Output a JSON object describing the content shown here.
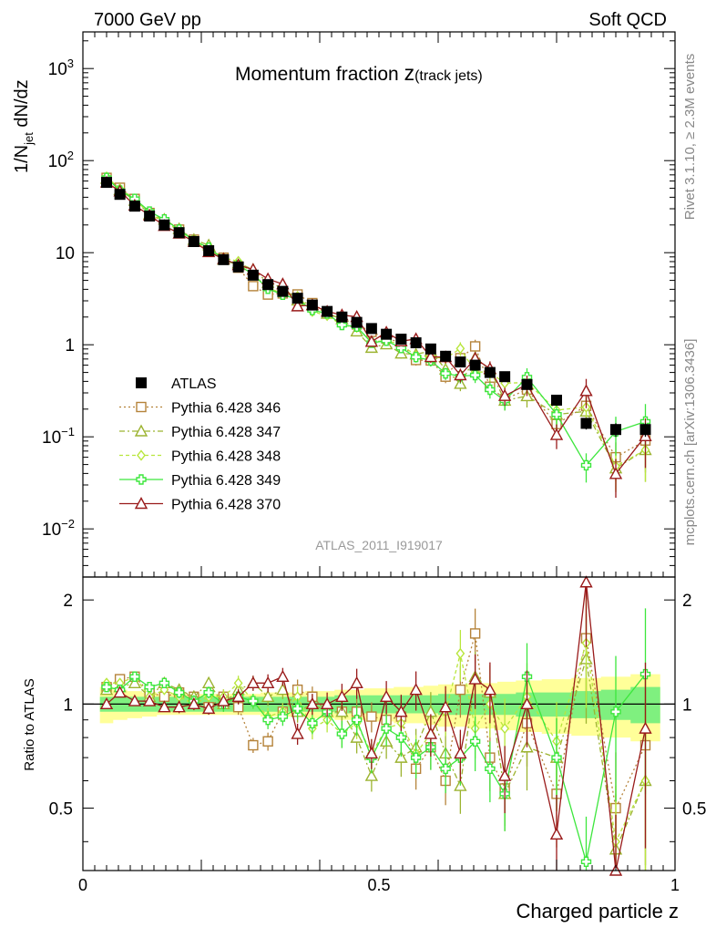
{
  "header": {
    "left": "7000 GeV pp",
    "right": "Soft QCD"
  },
  "side_text": {
    "rivet": "Rivet 3.1.10, ≥ 2.3M events",
    "mcplots": "mcplots.cern.ch [arXiv:1306.3436]"
  },
  "plot": {
    "title_main": "Momentum fraction ",
    "title_var": "z",
    "title_sub": "(track jets)",
    "analysis_id": "ATLAS_2011_I919017",
    "ylabel_main": "1/N",
    "ylabel_sub": "jet",
    "ylabel_rest": " dN/dz",
    "ratio_ylabel": "Ratio to ATLAS",
    "xlabel": "Charged particle z"
  },
  "colors": {
    "atlas": "#000000",
    "p346": "#b5833a",
    "p347": "#9cb330",
    "p348": "#b8e63c",
    "p349": "#3ce63c",
    "p370": "#991a1a",
    "band_yellow": "#ffff99",
    "band_green": "#7ff07f"
  },
  "chart_data": {
    "type": "scatter",
    "x_scale": "linear",
    "y_scale": "log",
    "xlim": [
      0,
      1
    ],
    "ylim": [
      0.003,
      2500
    ],
    "ratio_ylim": [
      0.33,
      2.33
    ],
    "x_ticks": [
      "0",
      "0.5",
      "1"
    ],
    "x_tick_values": [
      0,
      0.5,
      1
    ],
    "y_ticks": [
      {
        "value": 1000,
        "base": "10",
        "exp": "3"
      },
      {
        "value": 100,
        "base": "10",
        "exp": "2"
      },
      {
        "value": 10,
        "base": "10",
        "exp": ""
      },
      {
        "value": 1,
        "base": "1",
        "exp": ""
      },
      {
        "value": 0.1,
        "base": "10",
        "exp": "−1"
      },
      {
        "value": 0.01,
        "base": "10",
        "exp": "−2"
      }
    ],
    "ratio_ticks": [
      {
        "value": 0.5,
        "label": "0.5"
      },
      {
        "value": 1,
        "label": "1"
      },
      {
        "value": 2,
        "label": "2"
      }
    ],
    "x": [
      0.04,
      0.0625,
      0.0875,
      0.1125,
      0.1375,
      0.1625,
      0.1875,
      0.2125,
      0.2375,
      0.2625,
      0.2875,
      0.3125,
      0.3375,
      0.3625,
      0.3875,
      0.4125,
      0.4375,
      0.4625,
      0.4875,
      0.5125,
      0.5375,
      0.5625,
      0.5875,
      0.6125,
      0.6375,
      0.6625,
      0.6875,
      0.7125,
      0.75,
      0.8,
      0.85,
      0.9,
      0.95
    ],
    "atlas": {
      "name": "ATLAS",
      "values": [
        58,
        43,
        32,
        25,
        20,
        16.5,
        13.2,
        10.5,
        8.4,
        7,
        5.7,
        4.5,
        3.8,
        3.2,
        2.7,
        2.3,
        2,
        1.75,
        1.5,
        1.3,
        1.15,
        1.05,
        0.9,
        0.75,
        0.65,
        0.6,
        0.5,
        0.45,
        0.37,
        0.25,
        0.14,
        0.12,
        0.12
      ],
      "errors": [
        1.5,
        1,
        0.8,
        0.6,
        0.5,
        0.4,
        0.3,
        0.25,
        0.2,
        0.18,
        0.15,
        0.12,
        0.1,
        0.1,
        0.08,
        0.07,
        0.07,
        0.06,
        0.06,
        0.05,
        0.05,
        0.05,
        0.05,
        0.04,
        0.04,
        0.04,
        0.04,
        0.04,
        0.03,
        0.03,
        0.02,
        0.02,
        0.02
      ]
    },
    "band": {
      "yellow_lo": [
        0.88,
        0.9,
        0.91,
        0.92,
        0.93,
        0.93,
        0.93,
        0.93,
        0.93,
        0.93,
        0.93,
        0.92,
        0.92,
        0.92,
        0.91,
        0.91,
        0.9,
        0.9,
        0.89,
        0.89,
        0.88,
        0.88,
        0.87,
        0.86,
        0.86,
        0.85,
        0.85,
        0.84,
        0.83,
        0.82,
        0.81,
        0.8,
        0.78
      ],
      "yellow_hi": [
        1.12,
        1.1,
        1.09,
        1.08,
        1.07,
        1.07,
        1.07,
        1.07,
        1.07,
        1.07,
        1.07,
        1.08,
        1.08,
        1.08,
        1.09,
        1.09,
        1.1,
        1.1,
        1.11,
        1.11,
        1.12,
        1.12,
        1.13,
        1.14,
        1.14,
        1.15,
        1.15,
        1.16,
        1.17,
        1.18,
        1.19,
        1.2,
        1.22
      ],
      "green_lo": [
        0.95,
        0.95,
        0.95,
        0.95,
        0.95,
        0.95,
        0.95,
        0.95,
        0.95,
        0.95,
        0.95,
        0.95,
        0.95,
        0.95,
        0.95,
        0.95,
        0.94,
        0.94,
        0.94,
        0.94,
        0.94,
        0.94,
        0.94,
        0.93,
        0.93,
        0.93,
        0.93,
        0.93,
        0.92,
        0.92,
        0.91,
        0.9,
        0.88
      ],
      "green_hi": [
        1.05,
        1.05,
        1.05,
        1.05,
        1.05,
        1.05,
        1.05,
        1.05,
        1.05,
        1.05,
        1.05,
        1.05,
        1.05,
        1.05,
        1.05,
        1.05,
        1.06,
        1.06,
        1.06,
        1.06,
        1.06,
        1.06,
        1.06,
        1.07,
        1.07,
        1.07,
        1.07,
        1.07,
        1.08,
        1.08,
        1.09,
        1.1,
        1.12
      ]
    },
    "series": [
      {
        "name": "Pythia 6.428 346",
        "color_key": "p346",
        "marker": "square",
        "dash": "2,3",
        "ratio": [
          1.12,
          1.18,
          1.2,
          1.08,
          1.05,
          1.08,
          1.05,
          0.98,
          1.05,
          0.98,
          0.76,
          0.78,
          0.95,
          1.1,
          1.05,
          0.95,
          0.95,
          0.95,
          0.92,
          0.9,
          0.92,
          0.65,
          0.75,
          0.6,
          1.1,
          1.6,
          0.7,
          0.57,
          0.88,
          0.55,
          1.55,
          0.5,
          0.76
        ],
        "rel_err": [
          0.03,
          0.03,
          0.03,
          0.03,
          0.03,
          0.04,
          0.04,
          0.04,
          0.05,
          0.05,
          0.05,
          0.06,
          0.06,
          0.07,
          0.07,
          0.08,
          0.09,
          0.1,
          0.1,
          0.11,
          0.12,
          0.13,
          0.14,
          0.15,
          0.17,
          0.18,
          0.2,
          0.22,
          0.25,
          0.3,
          0.35,
          0.45,
          0.55
        ]
      },
      {
        "name": "Pythia 6.428 347",
        "color_key": "p347",
        "marker": "triangle",
        "dash": "6,3,2,3",
        "ratio": [
          1.1,
          1.12,
          1.15,
          1.05,
          1.15,
          1.1,
          1.05,
          1.15,
          1.0,
          1.1,
          1.15,
          1.05,
          1.1,
          0.95,
          1.0,
          0.95,
          0.95,
          0.8,
          0.62,
          0.78,
          0.7,
          0.75,
          0.95,
          0.72,
          0.58,
          1.2,
          1.08,
          0.55,
          0.75,
          0.7,
          1.35,
          0.38,
          0.6
        ],
        "rel_err": [
          0.03,
          0.03,
          0.03,
          0.03,
          0.03,
          0.04,
          0.04,
          0.04,
          0.05,
          0.05,
          0.05,
          0.06,
          0.06,
          0.07,
          0.07,
          0.08,
          0.09,
          0.1,
          0.1,
          0.11,
          0.12,
          0.13,
          0.14,
          0.15,
          0.17,
          0.18,
          0.2,
          0.22,
          0.25,
          0.3,
          0.35,
          0.45,
          0.55
        ]
      },
      {
        "name": "Pythia 6.428 348",
        "color_key": "p348",
        "marker": "diamond",
        "dash": "4,3",
        "ratio": [
          1.15,
          1.15,
          1.2,
          1.05,
          1.1,
          1.05,
          1.0,
          1.05,
          1.05,
          1.15,
          1.02,
          0.92,
          0.95,
          1.05,
          0.85,
          0.9,
          0.82,
          0.88,
          0.72,
          0.85,
          0.88,
          0.72,
          0.82,
          0.95,
          1.4,
          0.85,
          1.0,
          0.85,
          1.05,
          0.78,
          1.5,
          0.4,
          0.6
        ],
        "rel_err": [
          0.03,
          0.03,
          0.03,
          0.03,
          0.03,
          0.04,
          0.04,
          0.04,
          0.05,
          0.05,
          0.05,
          0.06,
          0.06,
          0.07,
          0.07,
          0.08,
          0.09,
          0.1,
          0.1,
          0.11,
          0.12,
          0.13,
          0.14,
          0.15,
          0.17,
          0.18,
          0.2,
          0.22,
          0.25,
          0.3,
          0.35,
          0.45,
          0.55
        ]
      },
      {
        "name": "Pythia 6.428 349",
        "color_key": "p349",
        "marker": "cross",
        "dash": "",
        "ratio": [
          1.12,
          1.1,
          1.2,
          1.12,
          1.15,
          1.08,
          1.02,
          1.08,
          1.0,
          1.05,
          1.02,
          0.9,
          0.92,
          0.97,
          0.88,
          0.95,
          0.82,
          0.9,
          0.7,
          0.85,
          0.8,
          0.7,
          0.75,
          0.65,
          0.7,
          0.78,
          0.65,
          0.55,
          1.2,
          0.7,
          0.35,
          0.95,
          1.22
        ],
        "rel_err": [
          0.03,
          0.03,
          0.03,
          0.03,
          0.03,
          0.04,
          0.04,
          0.04,
          0.05,
          0.05,
          0.05,
          0.06,
          0.06,
          0.07,
          0.07,
          0.08,
          0.09,
          0.1,
          0.1,
          0.11,
          0.12,
          0.13,
          0.14,
          0.15,
          0.17,
          0.18,
          0.2,
          0.22,
          0.25,
          0.3,
          0.35,
          0.45,
          0.55
        ]
      },
      {
        "name": "Pythia 6.428 370",
        "color_key": "p370",
        "marker": "triangle",
        "dash": "",
        "ratio": [
          1.0,
          1.08,
          1.02,
          1.02,
          0.98,
          0.98,
          1.0,
          0.97,
          1.02,
          1.05,
          1.15,
          1.15,
          1.2,
          0.82,
          1.0,
          1.0,
          1.05,
          1.15,
          0.72,
          1.05,
          0.95,
          1.1,
          0.82,
          0.98,
          0.72,
          1.18,
          1.1,
          0.62,
          1.0,
          0.42,
          2.25,
          0.33,
          0.85
        ],
        "rel_err": [
          0.03,
          0.03,
          0.03,
          0.03,
          0.03,
          0.04,
          0.04,
          0.04,
          0.05,
          0.05,
          0.05,
          0.06,
          0.06,
          0.07,
          0.07,
          0.08,
          0.09,
          0.1,
          0.1,
          0.11,
          0.12,
          0.13,
          0.14,
          0.15,
          0.17,
          0.18,
          0.2,
          0.22,
          0.25,
          0.3,
          0.35,
          0.45,
          0.55
        ]
      }
    ],
    "grid": false,
    "legend_position": "bottom-left of main panel"
  }
}
